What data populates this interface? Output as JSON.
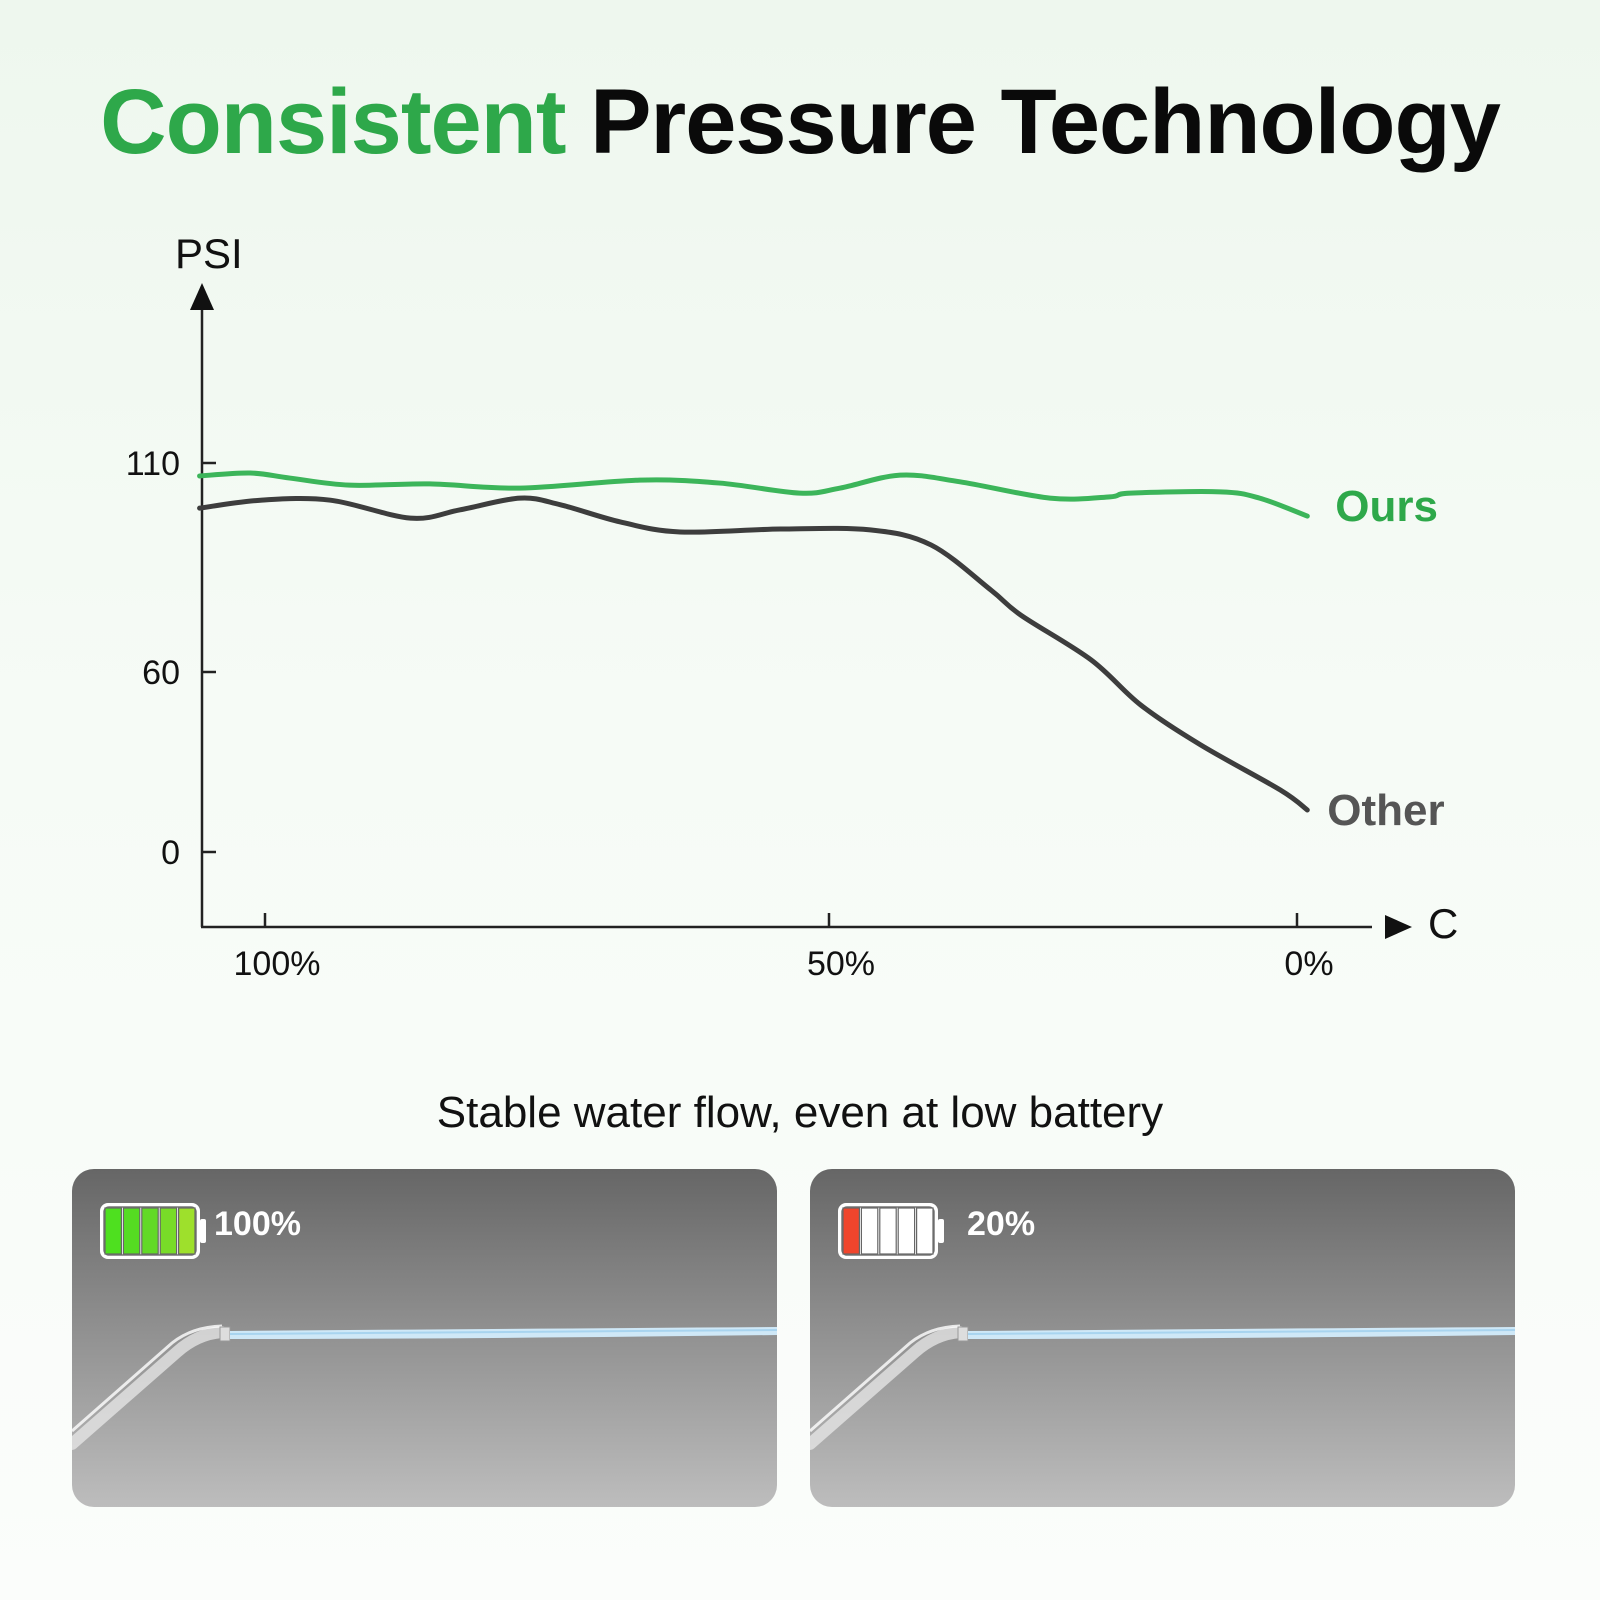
{
  "title": {
    "highlight": "Consistent",
    "rest": "Pressure Technology"
  },
  "subtitle": "Stable water flow, even at low battery",
  "colors": {
    "ours": "#3cb55a",
    "other": "#3d3d3d",
    "accent": "#2ea84a"
  },
  "chart_data": {
    "type": "line",
    "ylabel": "PSI",
    "xlabel": "C",
    "y_ticks": [
      0,
      60,
      110
    ],
    "y_tick_labels": [
      "0",
      "60",
      "110"
    ],
    "x_ticks": [
      100,
      50,
      0
    ],
    "x_tick_labels": [
      "100%",
      "50%",
      "0%"
    ],
    "x_reversed": true,
    "grid": false,
    "series": [
      {
        "name": "Ours",
        "x": [
          105.8,
          101.3,
          97.8,
          92.5,
          85.4,
          77.4,
          66.8,
          59.7,
          52.6,
          48.8,
          42.4,
          36,
          26.4,
          20,
          17.8,
          8.2,
          4,
          -1.1
        ],
        "y": [
          106.9,
          107.6,
          106.4,
          104.7,
          105,
          104,
          105.9,
          105.2,
          102.8,
          104,
          107.1,
          105.5,
          101.6,
          101.9,
          102.8,
          103.1,
          101.6,
          97.3
        ]
      },
      {
        "name": "Other",
        "x": [
          105.8,
          100.4,
          94.2,
          87.1,
          82.7,
          77.4,
          73.8,
          68.5,
          63.2,
          54.3,
          45.6,
          39.1,
          32.7,
          29.5,
          22,
          16.7,
          10.3,
          1.8,
          -1.1
        ],
        "y": [
          99.2,
          101.1,
          101.1,
          96.8,
          98.8,
          101.6,
          100,
          95.9,
          93.5,
          94.2,
          94,
          90.4,
          79.6,
          73.6,
          62.9,
          49,
          35.7,
          20.7,
          14
        ]
      }
    ]
  },
  "panels": [
    {
      "battery_label": "100%",
      "battery_level": 1.0,
      "fill_colors": [
        "#4ee01f",
        "#55dc22",
        "#62da26",
        "#78dc28",
        "#9ee02c"
      ]
    },
    {
      "battery_label": "20%",
      "battery_level": 0.2,
      "fill_colors": [
        "#f0452c"
      ]
    }
  ]
}
